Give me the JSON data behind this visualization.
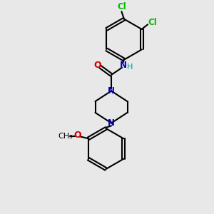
{
  "bg_color": "#e8e8e8",
  "bond_color": "#000000",
  "N_color": "#0000cc",
  "O_color": "#cc0000",
  "Cl_color": "#00bb00",
  "H_color": "#009999",
  "line_width": 1.5,
  "figsize": [
    3.0,
    3.0
  ],
  "dpi": 100,
  "xlim": [
    0,
    10
  ],
  "ylim": [
    0,
    10
  ]
}
